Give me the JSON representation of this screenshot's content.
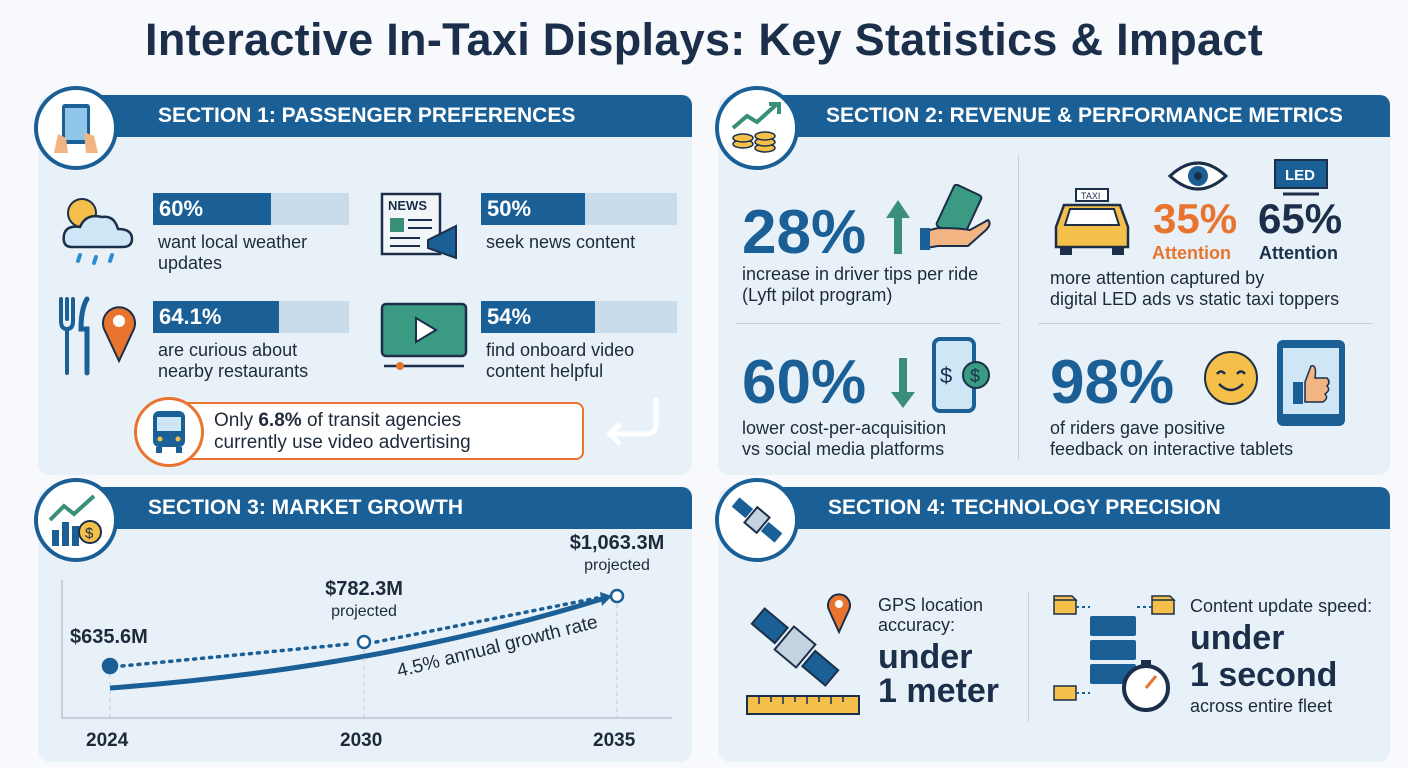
{
  "title": "Interactive In-Taxi Displays: Key Statistics & Impact",
  "section1": {
    "heading": "SECTION 1: PASSENGER PREFERENCES",
    "stats": [
      {
        "value": "60%",
        "pct": 60,
        "text1": "want local weather",
        "text2": "updates",
        "icon": "weather-icon"
      },
      {
        "value": "50%",
        "pct": 50,
        "text1": "seek news content",
        "text2": "",
        "icon": "news-icon"
      },
      {
        "value": "64.1%",
        "pct": 64.1,
        "text1": "are curious about",
        "text2": "nearby restaurants",
        "icon": "restaurant-location-icon"
      },
      {
        "value": "54%",
        "pct": 54,
        "text1": "find onboard video",
        "text2": "content helpful",
        "icon": "video-icon"
      }
    ],
    "note_pre": "Only ",
    "note_bold": "6.8%",
    "note_post": " of transit agencies",
    "note_line2": "currently use video advertising",
    "news_label": "NEWS"
  },
  "section2": {
    "heading": "SECTION 2: REVENUE & PERFORMANCE METRICS",
    "tips": {
      "value": "28%",
      "text1": "increase in driver tips per ride",
      "text2": "(Lyft pilot program)"
    },
    "attention": {
      "static_value": "35%",
      "static_label": "Attention",
      "digital_value": "65%",
      "digital_label": "Attention",
      "text1": "more attention captured by",
      "text2": "digital LED ads vs static taxi toppers",
      "taxi_label": "TAXI",
      "led_label": "LED"
    },
    "cpa": {
      "value": "60%",
      "text1": "lower cost-per-acquisition",
      "text2": "vs social media platforms"
    },
    "feedback": {
      "value": "98%",
      "text1": "of riders gave positive",
      "text2": "feedback on interactive tablets"
    }
  },
  "section3": {
    "heading": "SECTION 3: MARKET GROWTH",
    "growth_label": "4.5% annual growth rate",
    "projected_label": "projected"
  },
  "chart_data": {
    "type": "line",
    "x": [
      "2024",
      "2030",
      "2035"
    ],
    "values": [
      635.6,
      782.3,
      1063.3
    ],
    "labels": [
      "$635.6M",
      "$782.3M",
      "$1,063.3M"
    ],
    "projected": [
      false,
      true,
      true
    ],
    "unit": "$M"
  },
  "section4": {
    "heading": "SECTION 4: TECHNOLOGY PRECISION",
    "gps": {
      "text1": "GPS location",
      "text2": "accuracy:",
      "big1": "under",
      "big2": "1 meter"
    },
    "update": {
      "text1": "Content update speed:",
      "big1": "under",
      "big2": "1 second",
      "text2": "across entire fleet"
    }
  },
  "colors": {
    "primary": "#1a5f96",
    "accent": "#e8742f",
    "green": "#3a8f7a",
    "navy": "#1b2f4b",
    "panel": "#e9f1f8"
  }
}
